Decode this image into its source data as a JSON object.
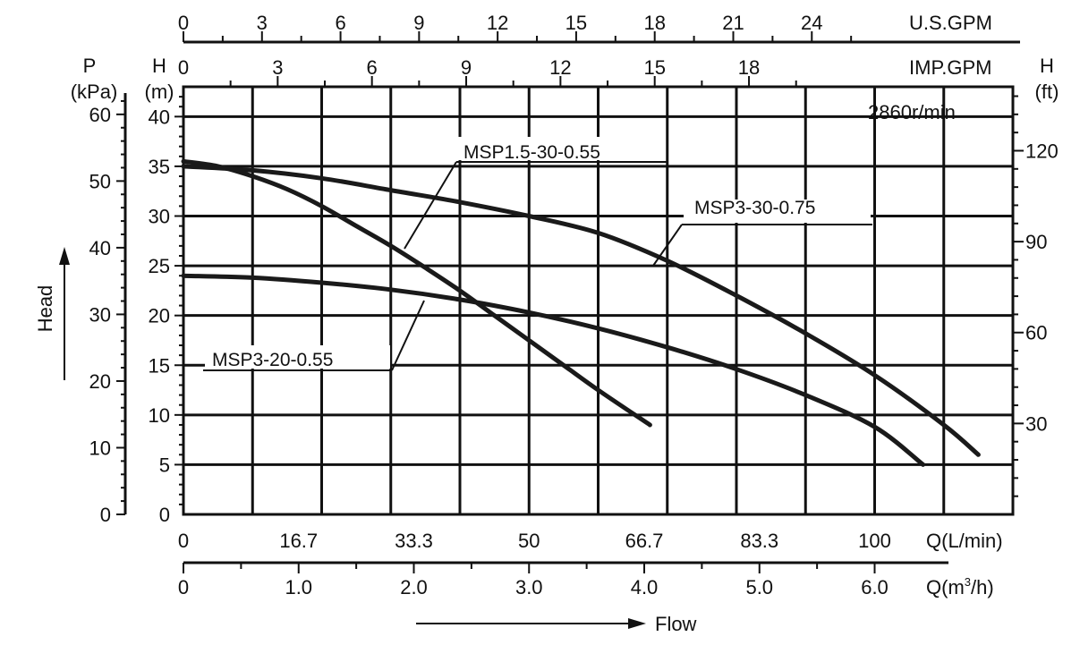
{
  "chart_data": {
    "type": "line",
    "speed_label": "2860r/min",
    "flow_axis_label": "Flow",
    "head_axis_label": "Head",
    "axes": {
      "q_lmin": {
        "unit": "Q(L/min)",
        "range": [
          0,
          120
        ],
        "ticks": [
          "0",
          "16.7",
          "33.3",
          "50",
          "66.7",
          "83.3",
          "100"
        ]
      },
      "q_m3h": {
        "unit": "Q(m³/h)",
        "unit_base": "Q(m",
        "unit_sup": "3",
        "unit_tail": "/h)",
        "ticks": [
          "0",
          "1.0",
          "2.0",
          "3.0",
          "4.0",
          "5.0",
          "6.0"
        ]
      },
      "us_gpm": {
        "unit": "U.S.GPM",
        "ticks": [
          "0",
          "3",
          "6",
          "9",
          "12",
          "15",
          "18",
          "21",
          "24"
        ]
      },
      "imp_gpm": {
        "unit": "IMP.GPM",
        "ticks": [
          "0",
          "3",
          "6",
          "9",
          "12",
          "15",
          "18"
        ]
      },
      "head_m": {
        "title_top": "H",
        "title_bottom": "(m)",
        "range": [
          0,
          43
        ],
        "ticks": [
          "0",
          "5",
          "10",
          "15",
          "20",
          "25",
          "30",
          "35",
          "40"
        ]
      },
      "pressure_kpa": {
        "title_top": "P",
        "title_bottom": "(kPa)",
        "ticks": [
          "0",
          "10",
          "20",
          "30",
          "40",
          "50",
          "60"
        ]
      },
      "head_ft": {
        "title_top": "H",
        "title_bottom": "(ft)",
        "ticks": [
          "30",
          "60",
          "90",
          "120"
        ]
      }
    },
    "series": [
      {
        "name": "MSP1.5-30-0.55",
        "x": [
          0,
          5,
          10,
          15,
          20,
          25,
          30,
          35,
          40,
          45,
          50,
          55,
          60,
          67.5
        ],
        "y": [
          35.5,
          35,
          34,
          32.7,
          31,
          29,
          27,
          24.8,
          22.5,
          20,
          17.5,
          15,
          12.5,
          9
        ]
      },
      {
        "name": "MSP3-30-0.75",
        "x": [
          0,
          10,
          20,
          30,
          40,
          50,
          60,
          70,
          80,
          90,
          100,
          110,
          115
        ],
        "y": [
          35,
          34.6,
          33.8,
          32.6,
          31.4,
          30,
          28.3,
          25.5,
          22,
          18.2,
          14,
          9,
          6
        ]
      },
      {
        "name": "MSP3-20-0.55",
        "x": [
          0,
          10,
          20,
          30,
          40,
          50,
          60,
          70,
          80,
          90,
          100,
          107
        ],
        "y": [
          24,
          23.8,
          23.3,
          22.6,
          21.6,
          20.3,
          18.7,
          16.8,
          14.6,
          12,
          8.8,
          5
        ]
      }
    ],
    "annotations": [
      {
        "series": "MSP1.5-30-0.55",
        "text": "MSP1.5-30-0.55"
      },
      {
        "series": "MSP3-30-0.75",
        "text": "MSP3-30-0.75"
      },
      {
        "series": "MSP3-20-0.55",
        "text": "MSP3-20-0.55"
      }
    ]
  }
}
